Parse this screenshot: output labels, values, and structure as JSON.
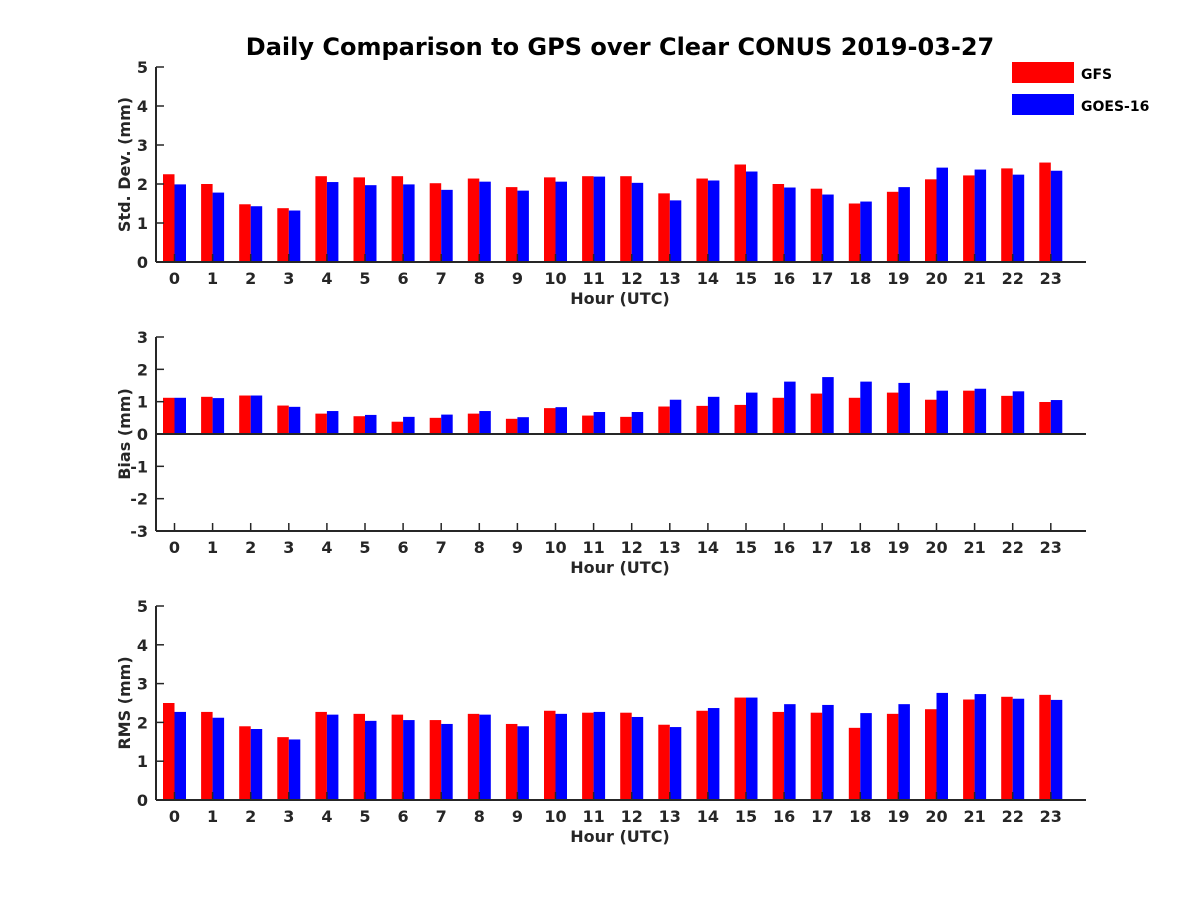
{
  "chart_data": {
    "type": "bar",
    "title": "Daily Comparison to GPS over Clear CONUS 2019-03-27",
    "legend": {
      "position": "top-right",
      "entries": [
        {
          "name": "GFS",
          "color": "#ff0000"
        },
        {
          "name": "GOES-16",
          "color": "#0000ff"
        }
      ]
    },
    "categories": [
      "0",
      "1",
      "2",
      "3",
      "4",
      "5",
      "6",
      "7",
      "8",
      "9",
      "10",
      "11",
      "12",
      "13",
      "14",
      "15",
      "16",
      "17",
      "18",
      "19",
      "20",
      "21",
      "22",
      "23"
    ],
    "panels": [
      {
        "id": "std",
        "ylabel": "Std. Dev. (mm)",
        "xlabel": "Hour (UTC)",
        "ylim": [
          0,
          5
        ],
        "yticks": [
          "0",
          "1",
          "2",
          "3",
          "4",
          "5"
        ],
        "series": [
          {
            "name": "GFS",
            "color": "#ff0000",
            "values": [
              2.25,
              2.0,
              1.48,
              1.38,
              2.2,
              2.17,
              2.2,
              2.02,
              2.14,
              1.92,
              2.17,
              2.2,
              2.2,
              1.76,
              2.14,
              2.5,
              2.0,
              1.88,
              1.5,
              1.8,
              2.12,
              2.22,
              2.4,
              2.55
            ]
          },
          {
            "name": "GOES-16",
            "color": "#0000ff",
            "values": [
              1.99,
              1.78,
              1.43,
              1.32,
              2.05,
              1.97,
              1.99,
              1.85,
              2.06,
              1.83,
              2.06,
              2.19,
              2.03,
              1.58,
              2.09,
              2.32,
              1.91,
              1.73,
              1.55,
              1.92,
              2.42,
              2.37,
              2.24,
              2.34
            ]
          }
        ]
      },
      {
        "id": "bias",
        "ylabel": "Bias (mm)",
        "xlabel": "Hour (UTC)",
        "ylim": [
          -3,
          3
        ],
        "yticks": [
          "-3",
          "-2",
          "-1",
          "0",
          "1",
          "2",
          "3"
        ],
        "series": [
          {
            "name": "GFS",
            "color": "#ff0000",
            "values": [
              1.12,
              1.15,
              1.19,
              0.88,
              0.63,
              0.55,
              0.38,
              0.5,
              0.63,
              0.47,
              0.8,
              0.57,
              0.53,
              0.85,
              0.87,
              0.9,
              1.12,
              1.25,
              1.12,
              1.28,
              1.06,
              1.34,
              1.18,
              0.99
            ]
          },
          {
            "name": "GOES-16",
            "color": "#0000ff",
            "values": [
              1.12,
              1.11,
              1.19,
              0.84,
              0.71,
              0.59,
              0.53,
              0.6,
              0.71,
              0.52,
              0.83,
              0.68,
              0.68,
              1.06,
              1.15,
              1.28,
              1.62,
              1.76,
              1.62,
              1.58,
              1.34,
              1.4,
              1.32,
              1.05
            ]
          }
        ]
      },
      {
        "id": "rms",
        "ylabel": "RMS (mm)",
        "xlabel": "Hour (UTC)",
        "ylim": [
          0,
          5
        ],
        "yticks": [
          "0",
          "1",
          "2",
          "3",
          "4",
          "5"
        ],
        "series": [
          {
            "name": "GFS",
            "color": "#ff0000",
            "values": [
              2.5,
              2.27,
              1.9,
              1.62,
              2.27,
              2.22,
              2.2,
              2.06,
              2.22,
              1.96,
              2.3,
              2.25,
              2.25,
              1.94,
              2.3,
              2.64,
              2.27,
              2.25,
              1.86,
              2.22,
              2.34,
              2.59,
              2.66,
              2.71
            ]
          },
          {
            "name": "GOES-16",
            "color": "#0000ff",
            "values": [
              2.27,
              2.12,
              1.83,
              1.56,
              2.2,
              2.04,
              2.06,
              1.96,
              2.2,
              1.9,
              2.22,
              2.27,
              2.14,
              1.88,
              2.37,
              2.64,
              2.47,
              2.45,
              2.24,
              2.47,
              2.76,
              2.73,
              2.61,
              2.58
            ]
          }
        ]
      }
    ]
  }
}
